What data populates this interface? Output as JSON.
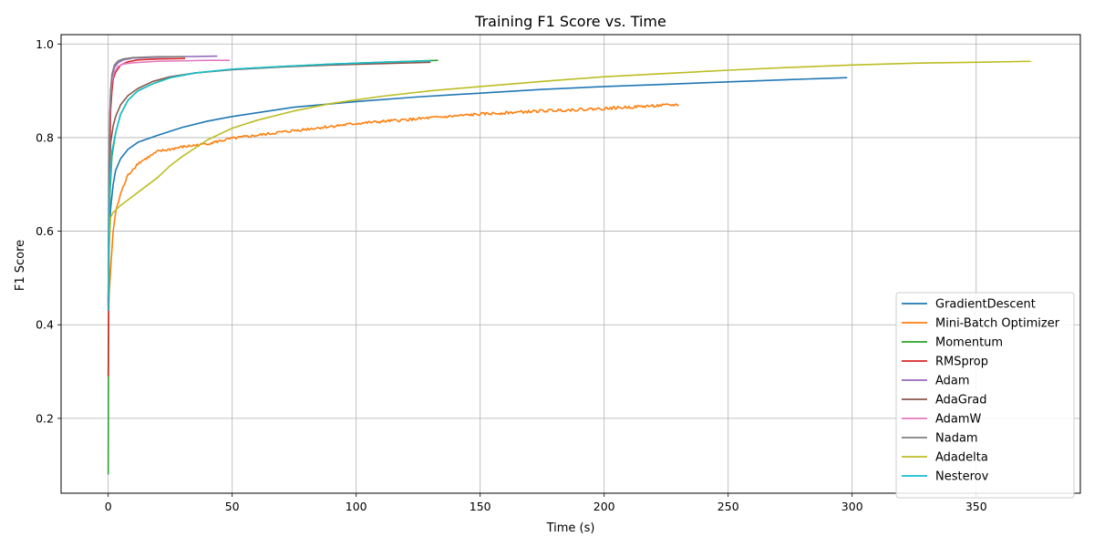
{
  "chart_data": {
    "type": "line",
    "title": "Training F1 Score vs. Time",
    "xlabel": "Time (s)",
    "ylabel": "F1 Score",
    "xlim": [
      -19,
      392
    ],
    "ylim": [
      0.04,
      1.02
    ],
    "xticks": [
      0,
      50,
      100,
      150,
      200,
      250,
      300,
      350
    ],
    "yticks": [
      0.2,
      0.4,
      0.6,
      0.8,
      1.0
    ],
    "xtick_labels": [
      "0",
      "50",
      "100",
      "150",
      "200",
      "250",
      "300",
      "350"
    ],
    "ytick_labels": [
      "0.2",
      "0.4",
      "0.6",
      "0.8",
      "1.0"
    ],
    "grid": true,
    "legend_position": "lower-right",
    "series": [
      {
        "name": "GradientDescent",
        "color": "#1f77b4",
        "noise": 0,
        "points": [
          [
            0,
            0.44
          ],
          [
            0.5,
            0.6
          ],
          [
            1,
            0.65
          ],
          [
            2,
            0.7
          ],
          [
            3,
            0.73
          ],
          [
            5,
            0.755
          ],
          [
            8,
            0.775
          ],
          [
            12,
            0.79
          ],
          [
            20,
            0.805
          ],
          [
            30,
            0.822
          ],
          [
            40,
            0.835
          ],
          [
            50,
            0.845
          ],
          [
            75,
            0.865
          ],
          [
            100,
            0.877
          ],
          [
            125,
            0.887
          ],
          [
            150,
            0.895
          ],
          [
            175,
            0.903
          ],
          [
            200,
            0.909
          ],
          [
            225,
            0.914
          ],
          [
            250,
            0.919
          ],
          [
            275,
            0.924
          ],
          [
            298,
            0.928
          ]
        ]
      },
      {
        "name": "Mini-Batch Optimizer",
        "color": "#ff7f0e",
        "noise": 0.003,
        "points": [
          [
            0,
            0.43
          ],
          [
            0.5,
            0.48
          ],
          [
            1,
            0.52
          ],
          [
            2,
            0.6
          ],
          [
            3,
            0.64
          ],
          [
            5,
            0.68
          ],
          [
            8,
            0.72
          ],
          [
            12,
            0.745
          ],
          [
            20,
            0.77
          ],
          [
            30,
            0.78
          ],
          [
            40,
            0.787
          ],
          [
            50,
            0.798
          ],
          [
            75,
            0.815
          ],
          [
            100,
            0.83
          ],
          [
            125,
            0.84
          ],
          [
            150,
            0.85
          ],
          [
            175,
            0.857
          ],
          [
            200,
            0.862
          ],
          [
            220,
            0.868
          ],
          [
            230,
            0.87
          ]
        ]
      },
      {
        "name": "Momentum",
        "color": "#2ca02c",
        "noise": 0,
        "points": [
          [
            0,
            0.08
          ],
          [
            0.1,
            0.3
          ],
          [
            0.3,
            0.55
          ],
          [
            0.7,
            0.68
          ],
          [
            1.5,
            0.76
          ],
          [
            3,
            0.81
          ],
          [
            5,
            0.85
          ],
          [
            8,
            0.88
          ],
          [
            12,
            0.9
          ],
          [
            18,
            0.915
          ],
          [
            25,
            0.928
          ],
          [
            35,
            0.938
          ],
          [
            50,
            0.946
          ],
          [
            70,
            0.952
          ],
          [
            90,
            0.957
          ],
          [
            110,
            0.961
          ],
          [
            133,
            0.965
          ]
        ]
      },
      {
        "name": "RMSprop",
        "color": "#d62728",
        "noise": 0,
        "points": [
          [
            0,
            0.29
          ],
          [
            0.2,
            0.43
          ],
          [
            0.5,
            0.72
          ],
          [
            1,
            0.86
          ],
          [
            1.5,
            0.9
          ],
          [
            2,
            0.925
          ],
          [
            3,
            0.94
          ],
          [
            5,
            0.955
          ],
          [
            8,
            0.962
          ],
          [
            12,
            0.966
          ],
          [
            20,
            0.968
          ],
          [
            31,
            0.969
          ]
        ]
      },
      {
        "name": "Adam",
        "color": "#9467bd",
        "noise": 0,
        "points": [
          [
            0,
            0.45
          ],
          [
            0.3,
            0.72
          ],
          [
            0.6,
            0.84
          ],
          [
            1,
            0.9
          ],
          [
            1.5,
            0.93
          ],
          [
            2.5,
            0.95
          ],
          [
            4,
            0.96
          ],
          [
            6,
            0.966
          ],
          [
            10,
            0.97
          ],
          [
            20,
            0.972
          ],
          [
            30,
            0.973
          ],
          [
            44,
            0.974
          ]
        ]
      },
      {
        "name": "AdaGrad",
        "color": "#8c564b",
        "noise": 0,
        "points": [
          [
            0,
            0.44
          ],
          [
            0.3,
            0.65
          ],
          [
            0.6,
            0.74
          ],
          [
            1,
            0.79
          ],
          [
            2,
            0.825
          ],
          [
            3,
            0.845
          ],
          [
            5,
            0.87
          ],
          [
            8,
            0.89
          ],
          [
            12,
            0.905
          ],
          [
            18,
            0.92
          ],
          [
            25,
            0.93
          ],
          [
            35,
            0.938
          ],
          [
            50,
            0.945
          ],
          [
            70,
            0.951
          ],
          [
            90,
            0.955
          ],
          [
            110,
            0.958
          ],
          [
            130,
            0.961
          ]
        ]
      },
      {
        "name": "AdamW",
        "color": "#e377c2",
        "noise": 0,
        "points": [
          [
            0,
            0.45
          ],
          [
            0.3,
            0.7
          ],
          [
            0.6,
            0.83
          ],
          [
            1,
            0.89
          ],
          [
            1.5,
            0.92
          ],
          [
            2.5,
            0.94
          ],
          [
            4,
            0.952
          ],
          [
            6,
            0.957
          ],
          [
            10,
            0.96
          ],
          [
            20,
            0.963
          ],
          [
            30,
            0.964
          ],
          [
            40,
            0.965
          ],
          [
            49,
            0.965
          ]
        ]
      },
      {
        "name": "Nadam",
        "color": "#7f7f7f",
        "noise": 0,
        "points": [
          [
            0,
            0.45
          ],
          [
            0.3,
            0.73
          ],
          [
            0.6,
            0.85
          ],
          [
            1,
            0.9
          ],
          [
            1.5,
            0.935
          ],
          [
            2.5,
            0.955
          ],
          [
            4,
            0.964
          ],
          [
            6,
            0.968
          ],
          [
            10,
            0.971
          ],
          [
            20,
            0.973
          ],
          [
            31,
            0.973
          ]
        ]
      },
      {
        "name": "Adadelta",
        "color": "#bcbd22",
        "noise": 0,
        "points": [
          [
            0,
            0.45
          ],
          [
            0.5,
            0.58
          ],
          [
            1,
            0.63
          ],
          [
            2,
            0.64
          ],
          [
            5,
            0.655
          ],
          [
            10,
            0.675
          ],
          [
            15,
            0.695
          ],
          [
            20,
            0.715
          ],
          [
            25,
            0.74
          ],
          [
            30,
            0.76
          ],
          [
            40,
            0.795
          ],
          [
            50,
            0.82
          ],
          [
            60,
            0.837
          ],
          [
            75,
            0.857
          ],
          [
            90,
            0.873
          ],
          [
            110,
            0.888
          ],
          [
            130,
            0.9
          ],
          [
            150,
            0.909
          ],
          [
            175,
            0.92
          ],
          [
            200,
            0.93
          ],
          [
            225,
            0.937
          ],
          [
            250,
            0.944
          ],
          [
            275,
            0.95
          ],
          [
            300,
            0.955
          ],
          [
            325,
            0.959
          ],
          [
            350,
            0.961
          ],
          [
            372,
            0.963
          ]
        ]
      },
      {
        "name": "Nesterov",
        "color": "#17becf",
        "noise": 0,
        "points": [
          [
            0,
            0.43
          ],
          [
            0.1,
            0.5
          ],
          [
            0.3,
            0.6
          ],
          [
            0.7,
            0.7
          ],
          [
            1.5,
            0.77
          ],
          [
            3,
            0.81
          ],
          [
            5,
            0.85
          ],
          [
            8,
            0.88
          ],
          [
            12,
            0.9
          ],
          [
            18,
            0.915
          ],
          [
            25,
            0.928
          ],
          [
            35,
            0.938
          ],
          [
            50,
            0.946
          ],
          [
            70,
            0.952
          ],
          [
            90,
            0.957
          ],
          [
            110,
            0.961
          ],
          [
            130,
            0.964
          ]
        ]
      }
    ]
  }
}
